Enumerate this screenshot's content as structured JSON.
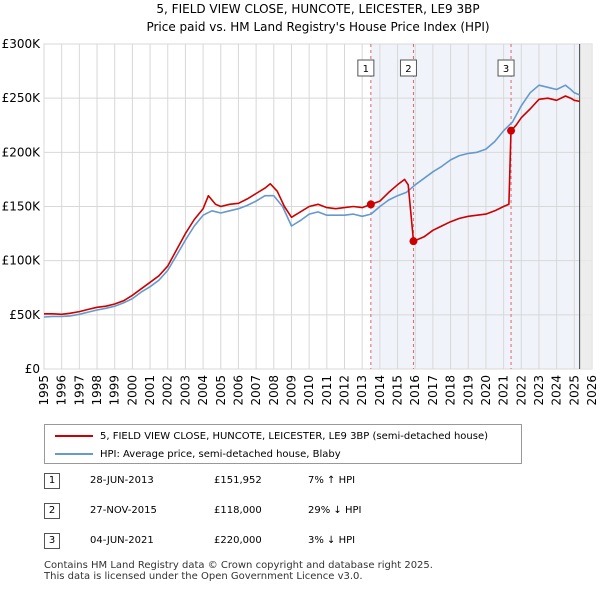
{
  "chart_data": {
    "type": "line",
    "title": "5, FIELD VIEW CLOSE, HUNCOTE, LEICESTER, LE9 3BP",
    "subtitle": "Price paid vs. HM Land Registry's House Price Index (HPI)",
    "xlabel": "",
    "ylabel": "",
    "xlim": [
      1995,
      2026
    ],
    "ylim": [
      0,
      300000
    ],
    "x_ticks": [
      "1995",
      "1996",
      "1997",
      "1998",
      "1999",
      "2000",
      "2001",
      "2002",
      "2003",
      "2004",
      "2005",
      "2006",
      "2007",
      "2008",
      "2009",
      "2010",
      "2011",
      "2012",
      "2013",
      "2014",
      "2015",
      "2016",
      "2017",
      "2018",
      "2019",
      "2020",
      "2021",
      "2022",
      "2023",
      "2024",
      "2025",
      "2026"
    ],
    "y_ticks": [
      {
        "value": 0,
        "label": "£0"
      },
      {
        "value": 50000,
        "label": "£50K"
      },
      {
        "value": 100000,
        "label": "£100K"
      },
      {
        "value": 150000,
        "label": "£150K"
      },
      {
        "value": 200000,
        "label": "£200K"
      },
      {
        "value": 250000,
        "label": "£250K"
      },
      {
        "value": 300000,
        "label": "£300K"
      }
    ],
    "grid": true,
    "series": [
      {
        "name": "5, FIELD VIEW CLOSE, HUNCOTE, LEICESTER, LE9 3BP (semi-detached house)",
        "color": "#cc0000",
        "points": [
          [
            1995.0,
            51000
          ],
          [
            1995.5,
            51000
          ],
          [
            1996.0,
            50500
          ],
          [
            1996.5,
            51500
          ],
          [
            1997.0,
            53000
          ],
          [
            1997.5,
            55000
          ],
          [
            1998.0,
            57000
          ],
          [
            1998.5,
            58000
          ],
          [
            1999.0,
            60000
          ],
          [
            1999.5,
            63000
          ],
          [
            2000.0,
            68000
          ],
          [
            2000.5,
            74000
          ],
          [
            2001.0,
            80000
          ],
          [
            2001.5,
            86000
          ],
          [
            2002.0,
            95000
          ],
          [
            2002.5,
            110000
          ],
          [
            2003.0,
            125000
          ],
          [
            2003.5,
            138000
          ],
          [
            2004.0,
            148000
          ],
          [
            2004.3,
            160000
          ],
          [
            2004.7,
            152000
          ],
          [
            2005.0,
            150000
          ],
          [
            2005.5,
            152000
          ],
          [
            2006.0,
            153000
          ],
          [
            2006.5,
            157000
          ],
          [
            2007.0,
            162000
          ],
          [
            2007.5,
            167000
          ],
          [
            2007.8,
            171000
          ],
          [
            2008.2,
            164000
          ],
          [
            2008.6,
            150000
          ],
          [
            2009.0,
            140000
          ],
          [
            2009.5,
            145000
          ],
          [
            2010.0,
            150000
          ],
          [
            2010.5,
            152000
          ],
          [
            2011.0,
            149000
          ],
          [
            2011.5,
            148000
          ],
          [
            2012.0,
            149000
          ],
          [
            2012.5,
            150000
          ],
          [
            2013.0,
            149000
          ],
          [
            2013.49,
            151952
          ],
          [
            2014.0,
            155000
          ],
          [
            2014.5,
            163000
          ],
          [
            2015.0,
            170000
          ],
          [
            2015.4,
            175000
          ],
          [
            2015.6,
            170000
          ],
          [
            2015.9,
            118000
          ],
          [
            2016.5,
            122000
          ],
          [
            2017.0,
            128000
          ],
          [
            2017.5,
            132000
          ],
          [
            2018.0,
            136000
          ],
          [
            2018.5,
            139000
          ],
          [
            2019.0,
            141000
          ],
          [
            2019.5,
            142000
          ],
          [
            2020.0,
            143000
          ],
          [
            2020.5,
            146000
          ],
          [
            2021.0,
            150000
          ],
          [
            2021.3,
            152000
          ],
          [
            2021.42,
            220000
          ],
          [
            2021.7,
            225000
          ],
          [
            2022.0,
            232000
          ],
          [
            2022.5,
            240000
          ],
          [
            2023.0,
            249000
          ],
          [
            2023.5,
            250000
          ],
          [
            2024.0,
            248000
          ],
          [
            2024.5,
            252000
          ],
          [
            2024.8,
            250000
          ],
          [
            2025.0,
            248000
          ],
          [
            2025.3,
            247000
          ]
        ]
      },
      {
        "name": "HPI: Average price, semi-detached house, Blaby",
        "color": "#6699cc",
        "points": [
          [
            1995.0,
            48000
          ],
          [
            1995.5,
            48500
          ],
          [
            1996.0,
            48500
          ],
          [
            1996.5,
            49000
          ],
          [
            1997.0,
            50500
          ],
          [
            1997.5,
            52500
          ],
          [
            1998.0,
            54500
          ],
          [
            1998.5,
            56000
          ],
          [
            1999.0,
            58000
          ],
          [
            1999.5,
            61000
          ],
          [
            2000.0,
            65000
          ],
          [
            2000.5,
            71000
          ],
          [
            2001.0,
            76000
          ],
          [
            2001.5,
            82000
          ],
          [
            2002.0,
            91000
          ],
          [
            2002.5,
            105000
          ],
          [
            2003.0,
            119000
          ],
          [
            2003.5,
            132000
          ],
          [
            2004.0,
            142000
          ],
          [
            2004.5,
            146000
          ],
          [
            2005.0,
            144000
          ],
          [
            2005.5,
            146000
          ],
          [
            2006.0,
            148000
          ],
          [
            2006.5,
            151000
          ],
          [
            2007.0,
            155000
          ],
          [
            2007.5,
            160000
          ],
          [
            2008.0,
            160000
          ],
          [
            2008.5,
            150000
          ],
          [
            2009.0,
            132000
          ],
          [
            2009.5,
            137000
          ],
          [
            2010.0,
            143000
          ],
          [
            2010.5,
            145000
          ],
          [
            2011.0,
            142000
          ],
          [
            2011.5,
            142000
          ],
          [
            2012.0,
            142000
          ],
          [
            2012.5,
            143000
          ],
          [
            2013.0,
            141000
          ],
          [
            2013.5,
            143000
          ],
          [
            2014.0,
            150000
          ],
          [
            2014.5,
            156000
          ],
          [
            2015.0,
            160000
          ],
          [
            2015.5,
            163000
          ],
          [
            2016.0,
            170000
          ],
          [
            2016.5,
            176000
          ],
          [
            2017.0,
            182000
          ],
          [
            2017.5,
            187000
          ],
          [
            2018.0,
            193000
          ],
          [
            2018.5,
            197000
          ],
          [
            2019.0,
            199000
          ],
          [
            2019.5,
            200000
          ],
          [
            2020.0,
            203000
          ],
          [
            2020.5,
            210000
          ],
          [
            2021.0,
            220000
          ],
          [
            2021.5,
            228000
          ],
          [
            2022.0,
            243000
          ],
          [
            2022.5,
            255000
          ],
          [
            2023.0,
            262000
          ],
          [
            2023.5,
            260000
          ],
          [
            2024.0,
            258000
          ],
          [
            2024.5,
            262000
          ],
          [
            2024.8,
            258000
          ],
          [
            2025.0,
            255000
          ],
          [
            2025.3,
            253000
          ]
        ]
      }
    ],
    "transactions": [
      {
        "num": "1",
        "date": "28-JUN-2013",
        "price": "£151,952",
        "hpi": "7% ↑ HPI",
        "x": 2013.49,
        "value": 151952
      },
      {
        "num": "2",
        "date": "27-NOV-2015",
        "price": "£118,000",
        "hpi": "29% ↓ HPI",
        "x": 2015.9,
        "value": 118000
      },
      {
        "num": "3",
        "date": "04-JUN-2021",
        "price": "£220,000",
        "hpi": "3% ↓ HPI",
        "x": 2021.42,
        "value": 220000
      }
    ],
    "forecast_start": 2025.3,
    "legend": {
      "placement": "below"
    }
  },
  "footer": {
    "line1": "Contains HM Land Registry data © Crown copyright and database right 2025.",
    "line2": "This data is licensed under the Open Government Licence v3.0."
  }
}
